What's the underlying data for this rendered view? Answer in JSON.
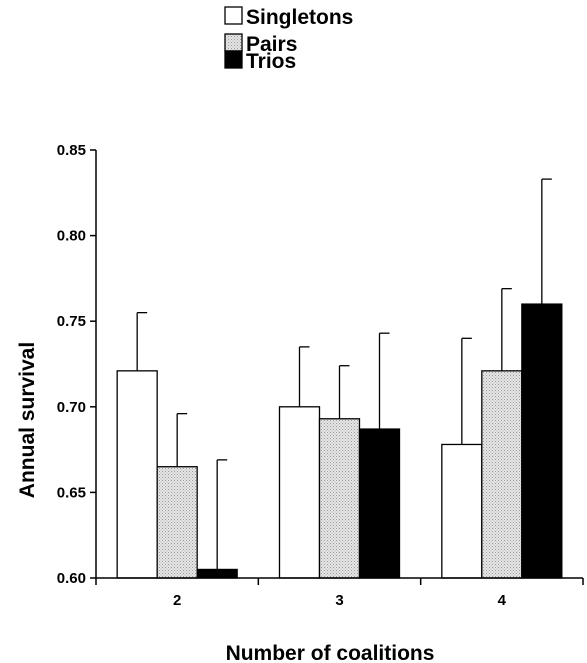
{
  "chart_data": {
    "type": "bar",
    "xlabel": "Number of coalitions",
    "ylabel": "Annual survival",
    "categories": [
      "2",
      "3",
      "4"
    ],
    "ylim": [
      0.6,
      0.85
    ],
    "yticks": [
      "0.60",
      "0.65",
      "0.70",
      "0.75",
      "0.80",
      "0.85"
    ],
    "legend_position": "top-center",
    "series": [
      {
        "name": "Singletons",
        "color": "#ffffff",
        "values": [
          0.721,
          0.7,
          0.678
        ],
        "error": [
          0.034,
          0.035,
          0.062
        ]
      },
      {
        "name": "Pairs",
        "color": "#d9d9d9",
        "values": [
          0.665,
          0.693,
          0.721
        ],
        "error": [
          0.031,
          0.031,
          0.048
        ]
      },
      {
        "name": "Trios",
        "color": "#000000",
        "values": [
          0.605,
          0.687,
          0.76
        ],
        "error": [
          0.064,
          0.056,
          0.073
        ]
      }
    ]
  }
}
